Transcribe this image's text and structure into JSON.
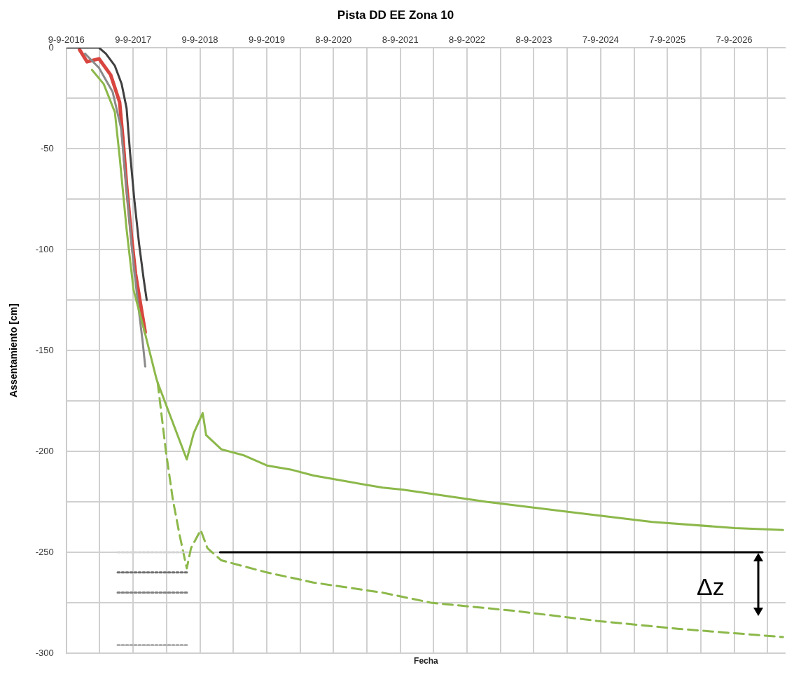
{
  "chart_data": {
    "type": "line",
    "title": "Pista DD EE Zona 10",
    "xlabel": "Fecha",
    "ylabel": "Assentamiento [cm]",
    "xlim": [
      "2016-09-09",
      "2027-06-15"
    ],
    "ylim": [
      -300,
      0
    ],
    "xticks": [
      {
        "value": "2016-09-09",
        "label": "9-9-2016"
      },
      {
        "value": "2017-03-10",
        "label": null
      },
      {
        "value": "2017-09-09",
        "label": "9-9-2017"
      },
      {
        "value": "2018-03-10",
        "label": null
      },
      {
        "value": "2018-09-09",
        "label": "9-9-2018"
      },
      {
        "value": "2019-03-10",
        "label": null
      },
      {
        "value": "2019-09-09",
        "label": "9-9-2019"
      },
      {
        "value": "2020-03-09",
        "label": null
      },
      {
        "value": "2020-09-08",
        "label": "8-9-2020"
      },
      {
        "value": "2021-03-09",
        "label": null
      },
      {
        "value": "2021-09-08",
        "label": "8-9-2021"
      },
      {
        "value": "2022-03-09",
        "label": null
      },
      {
        "value": "2022-09-08",
        "label": "8-9-2022"
      },
      {
        "value": "2023-03-09",
        "label": null
      },
      {
        "value": "2023-09-08",
        "label": "8-9-2023"
      },
      {
        "value": "2024-03-08",
        "label": null
      },
      {
        "value": "2024-09-07",
        "label": "7-9-2024"
      },
      {
        "value": "2025-03-09",
        "label": null
      },
      {
        "value": "2025-09-07",
        "label": "7-9-2025"
      },
      {
        "value": "2026-03-09",
        "label": null
      },
      {
        "value": "2026-09-07",
        "label": "7-9-2026"
      },
      {
        "value": "2027-03-09",
        "label": null
      }
    ],
    "yticks": [
      0,
      {
        "value": -25,
        "label": null
      },
      -50,
      {
        "value": -75,
        "label": null
      },
      -100,
      {
        "value": -125,
        "label": null
      },
      -150,
      {
        "value": -175,
        "label": null
      },
      -200,
      {
        "value": -225,
        "label": null
      },
      -250,
      {
        "value": -275,
        "label": null
      },
      -300
    ],
    "grid": true,
    "legend": false,
    "marker": "none",
    "series": [
      {
        "type": "line",
        "line_style": "dotted",
        "color": "#d4d4d4",
        "x": [
          "2017-06-16",
          "2018-07-03"
        ],
        "values": [
          -250,
          -250
        ]
      },
      {
        "type": "line",
        "line_style": "dotted",
        "color": "#707070",
        "x": [
          "2017-06-16",
          "2018-07-03"
        ],
        "values": [
          -260,
          -260
        ]
      },
      {
        "type": "line",
        "line_style": "dotted",
        "color": "#808080",
        "x": [
          "2017-06-16",
          "2018-07-03"
        ],
        "values": [
          -270,
          -270
        ]
      },
      {
        "type": "line",
        "line_style": "dotted",
        "color": "#b0b0b0",
        "x": [
          "2017-06-16",
          "2018-07-03"
        ],
        "values": [
          -296,
          -296
        ]
      },
      {
        "type": "line",
        "line_style": "solid",
        "color": "#8cb84a",
        "x": [
          "2017-01-27",
          "2017-04-01",
          "2017-06-01",
          "2017-06-27",
          "2017-08-04",
          "2017-09-11",
          "2017-11-14",
          "2018-01-14",
          "2018-01-21",
          "2018-06-29",
          "2018-08-06",
          "2018-09-24",
          "2018-10-13",
          "2019-01-04",
          "2019-05-08",
          "2019-09-10",
          "2020-01-17",
          "2020-05-21",
          "2020-09-23",
          "2021-06-03",
          "2021-09-24",
          "2022-12-22",
          "2024-03-20",
          "2025-06-16",
          "2026-09-11",
          "2027-06-01"
        ],
        "values": [
          -11,
          -18,
          -32,
          -54,
          -90,
          -120,
          -142,
          -164,
          -166,
          -204,
          -191,
          -181,
          -192,
          -199,
          -202,
          -207,
          -209,
          -212,
          -214,
          -218,
          -219,
          -225,
          -230,
          -235,
          -238,
          -239
        ]
      },
      {
        "type": "line",
        "line_style": "dashed",
        "color": "#8cb84a",
        "x": [
          "2018-01-21",
          "2018-03-07",
          "2018-04-14",
          "2018-05-22",
          "2018-06-29",
          "2018-07-22",
          "2018-09-13",
          "2018-10-20",
          "2019-01-04",
          "2019-05-08",
          "2019-09-10",
          "2020-05-21",
          "2021-06-03",
          "2022-02-22",
          "2023-05-21",
          "2024-08-17",
          "2025-11-13",
          "2027-06-01"
        ],
        "values": [
          -166,
          -200,
          -224,
          -242,
          -258,
          -248,
          -239,
          -248,
          -254,
          -257,
          -260,
          -265,
          -270,
          -275,
          -279,
          -284,
          -288,
          -292
        ]
      },
      {
        "type": "line",
        "line_style": "solid",
        "color": "#8a8a8a",
        "x": [
          "2016-12-20",
          "2017-03-06",
          "2017-05-20",
          "2017-07-05",
          "2017-08-04",
          "2017-09-03",
          "2017-10-03",
          "2017-10-30",
          "2017-11-14"
        ],
        "values": [
          -3,
          -10,
          -22,
          -40,
          -70,
          -100,
          -125,
          -145,
          -158
        ]
      },
      {
        "type": "line",
        "line_style": "solid",
        "color": "#404040",
        "x": [
          "2016-09-09",
          "2017-03-06",
          "2017-04-13",
          "2017-06-01",
          "2017-07-08",
          "2017-08-04",
          "2017-08-23",
          "2017-09-15",
          "2017-10-11",
          "2017-11-06",
          "2017-11-22"
        ],
        "values": [
          0,
          0,
          -3,
          -9,
          -18,
          -30,
          -52,
          -75,
          -97,
          -115,
          -125
        ]
      },
      {
        "type": "line",
        "line_style": "solid",
        "color": "#d9453f",
        "x": [
          "2016-11-20",
          "2016-12-31",
          "2017-03-06",
          "2017-05-09",
          "2017-06-27",
          "2017-07-16",
          "2017-08-04",
          "2017-08-30",
          "2017-09-22",
          "2017-11-14"
        ],
        "values": [
          -1,
          -7,
          -5.5,
          -13.5,
          -27,
          -46,
          -68,
          -93,
          -112,
          -141
        ]
      },
      {
        "type": "line",
        "line_style": "solid",
        "color": "#000000",
        "x": [
          "2018-12-28",
          "2027-02-09"
        ],
        "values": [
          -250,
          -250
        ]
      }
    ],
    "annotations": [
      "Δz"
    ]
  }
}
